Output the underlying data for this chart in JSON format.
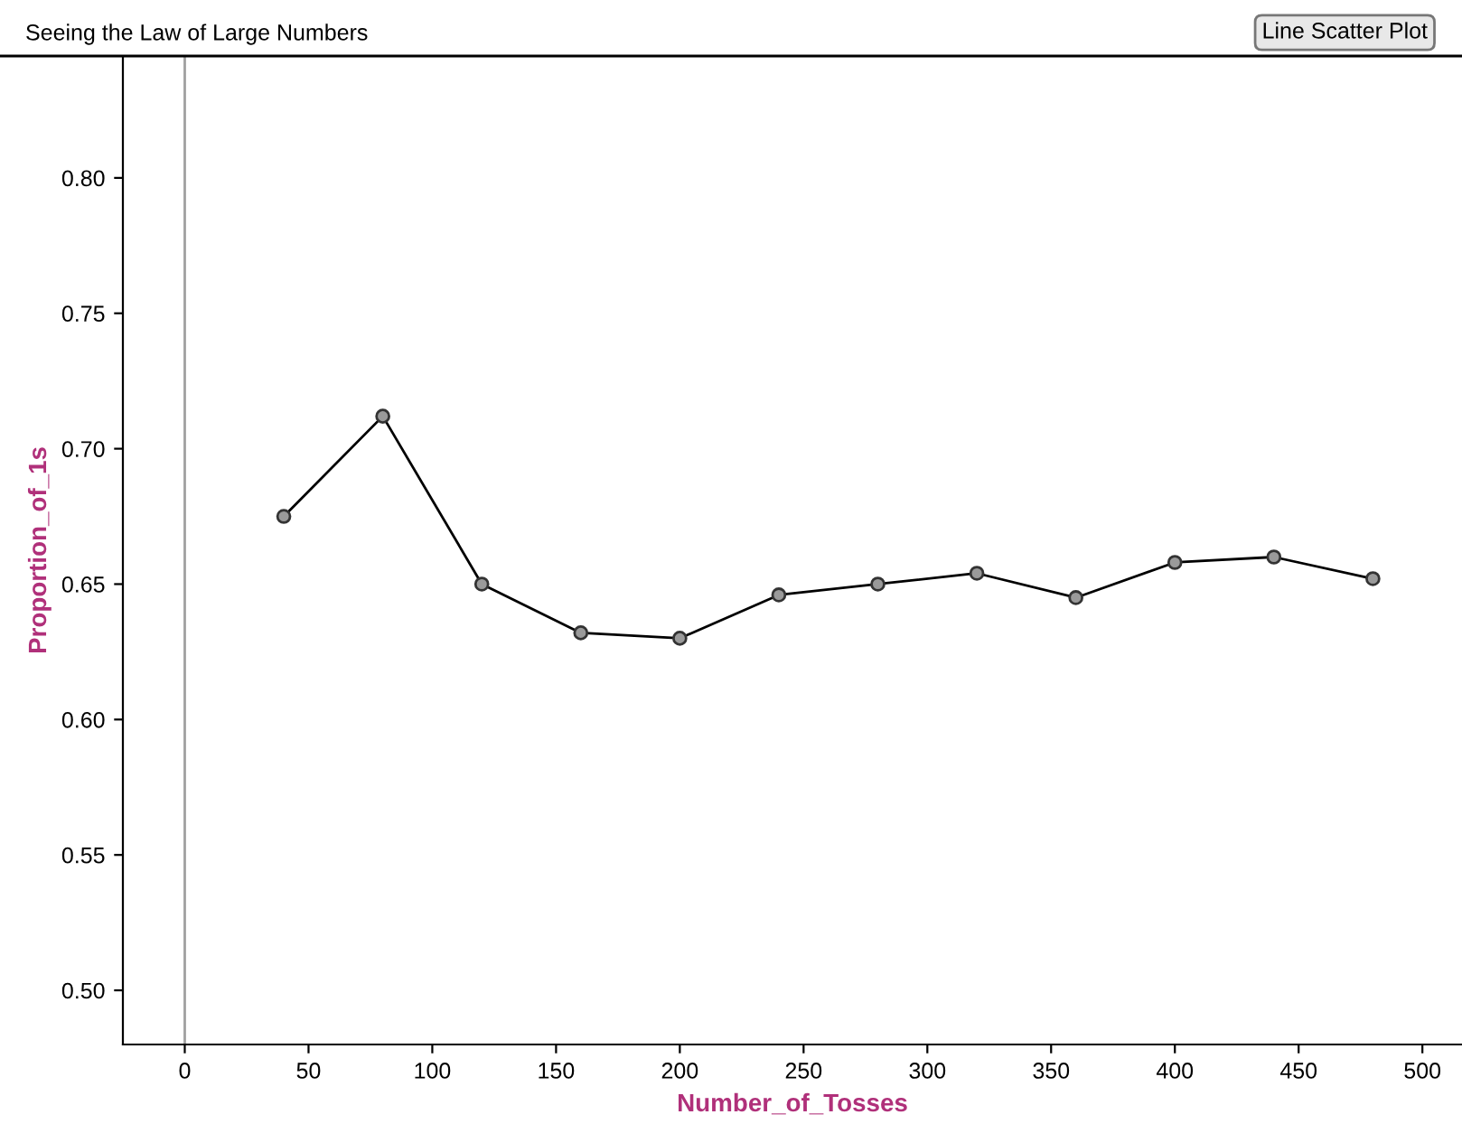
{
  "chart_data": {
    "type": "line",
    "title": "Seeing the Law of Large Numbers",
    "annotations": [
      "Line Scatter Plot"
    ],
    "xlabel": "Number_of_Tosses",
    "ylabel": "Proportion_of_1s",
    "x": [
      40,
      80,
      120,
      160,
      200,
      240,
      280,
      320,
      360,
      400,
      440,
      480
    ],
    "series": [
      {
        "color": "#000000",
        "values": [
          0.675,
          0.712,
          0.65,
          0.632,
          0.63,
          0.646,
          0.65,
          0.654,
          0.645,
          0.658,
          0.66,
          0.652
        ]
      }
    ],
    "xlim": [
      -25,
      516
    ],
    "ylim": [
      0.48,
      0.845
    ],
    "xticks": [
      0,
      50,
      100,
      150,
      200,
      250,
      300,
      350,
      400,
      450,
      500
    ],
    "yticks": [
      {
        "value": 0.5,
        "label": "0.50"
      },
      0.55,
      {
        "value": 0.6,
        "label": "0.60"
      },
      0.65,
      {
        "value": 0.7,
        "label": "0.70"
      },
      0.75,
      {
        "value": 0.8,
        "label": "0.80"
      }
    ],
    "ref_lines": [
      {
        "axis": "x",
        "value": 0,
        "color": "#a0a0a0"
      }
    ],
    "marker": "circle",
    "line_style": "solid",
    "grid": false,
    "legend": false
  }
}
